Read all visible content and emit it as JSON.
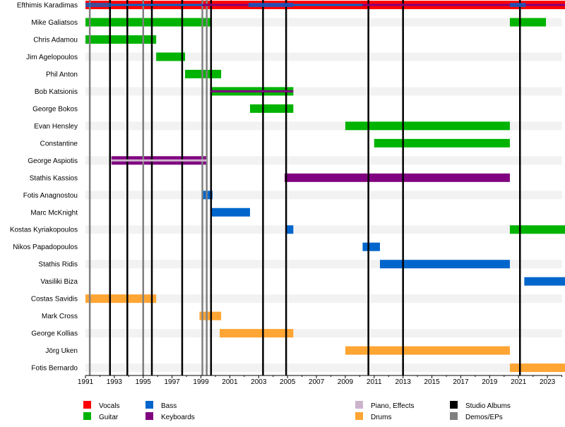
{
  "chart_data": {
    "type": "timeline",
    "xlim": [
      1991,
      2024.3
    ],
    "ticks": [
      1991,
      1993,
      1995,
      1997,
      1999,
      2001,
      2003,
      2005,
      2007,
      2009,
      2011,
      2013,
      2015,
      2017,
      2019,
      2021,
      2023
    ],
    "colors": {
      "Vocals": "#ff0000",
      "Guitar": "#00b300",
      "Bass": "#0066cc",
      "Keyboards": "#800080",
      "Piano, Effects": "#ccb3cc",
      "Drums": "#ffa533",
      "Studio Albums": "#000000",
      "Demos/EPs": "#808080"
    },
    "members": [
      {
        "name": "Efthimis Karadimas",
        "bars": [
          {
            "role": "Vocals",
            "from": 1991,
            "to": 2024.3
          },
          {
            "role": "Bass",
            "from": 1991,
            "to": 1992.8,
            "layer": "inner"
          },
          {
            "role": "Bass",
            "from": 1992.8,
            "to": 1999.1,
            "layer": "thin"
          },
          {
            "role": "Keyboards",
            "from": 1999.1,
            "to": 2024.3,
            "layer": "thin"
          },
          {
            "role": "Bass",
            "from": 2002.3,
            "to": 2005.4,
            "layer": "inner"
          },
          {
            "role": "Bass",
            "from": 2005.4,
            "to": 2010.2,
            "layer": "thin"
          },
          {
            "role": "Bass",
            "from": 2020.4,
            "to": 2021.5,
            "layer": "inner"
          }
        ]
      },
      {
        "name": "Mike Galiatsos",
        "bars": [
          {
            "role": "Guitar",
            "from": 1991,
            "to": 1999.7
          },
          {
            "role": "Guitar",
            "from": 2020.4,
            "to": 2022.9
          }
        ]
      },
      {
        "name": "Chris Adamou",
        "bars": [
          {
            "role": "Guitar",
            "from": 1991,
            "to": 1995.9
          }
        ]
      },
      {
        "name": "Jim Agelopoulos",
        "bars": [
          {
            "role": "Guitar",
            "from": 1995.9,
            "to": 1997.9
          }
        ]
      },
      {
        "name": "Phil Anton",
        "bars": [
          {
            "role": "Guitar",
            "from": 1997.9,
            "to": 2000.4
          }
        ]
      },
      {
        "name": "Bob Katsionis",
        "bars": [
          {
            "role": "Guitar",
            "from": 1999.7,
            "to": 2005.4
          },
          {
            "role": "Keyboards",
            "from": 1999.7,
            "to": 2005.4,
            "layer": "thin"
          }
        ]
      },
      {
        "name": "George Bokos",
        "bars": [
          {
            "role": "Guitar",
            "from": 2002.4,
            "to": 2005.4
          }
        ]
      },
      {
        "name": "Evan Hensley",
        "bars": [
          {
            "role": "Guitar",
            "from": 2009,
            "to": 2020.4
          }
        ]
      },
      {
        "name": "Constantine",
        "bars": [
          {
            "role": "Guitar",
            "from": 2011,
            "to": 2020.4
          }
        ]
      },
      {
        "name": "George Aspiotis",
        "bars": [
          {
            "role": "Keyboards",
            "from": 1992.8,
            "to": 1999.4
          },
          {
            "role": "Piano, Effects",
            "from": 1992.8,
            "to": 1999.4,
            "layer": "thin"
          }
        ]
      },
      {
        "name": "Stathis Kassios",
        "bars": [
          {
            "role": "Keyboards",
            "from": 2004.8,
            "to": 2020.4
          }
        ]
      },
      {
        "name": "Fotis Anagnostou",
        "bars": [
          {
            "role": "Bass",
            "from": 1999.1,
            "to": 1999.8
          }
        ]
      },
      {
        "name": "Marc McKnight",
        "bars": [
          {
            "role": "Bass",
            "from": 1999.7,
            "to": 2002.4
          }
        ]
      },
      {
        "name": "Kostas Kyriakopoulos",
        "bars": [
          {
            "role": "Bass",
            "from": 2004.9,
            "to": 2005.4
          },
          {
            "role": "Guitar",
            "from": 2020.4,
            "to": 2024.3
          }
        ]
      },
      {
        "name": "Nikos Papadopoulos",
        "bars": [
          {
            "role": "Bass",
            "from": 2010.2,
            "to": 2011.4
          }
        ]
      },
      {
        "name": "Stathis Ridis",
        "bars": [
          {
            "role": "Bass",
            "from": 2011.4,
            "to": 2020.4
          }
        ]
      },
      {
        "name": "Vasiliki Biza",
        "bars": [
          {
            "role": "Bass",
            "from": 2021.4,
            "to": 2024.3
          }
        ]
      },
      {
        "name": "Costas Savidis",
        "bars": [
          {
            "role": "Drums",
            "from": 1991,
            "to": 1995.9
          }
        ]
      },
      {
        "name": "Mark Cross",
        "bars": [
          {
            "role": "Drums",
            "from": 1998.9,
            "to": 2000.4
          }
        ]
      },
      {
        "name": "George Kollias",
        "bars": [
          {
            "role": "Drums",
            "from": 2000.3,
            "to": 2005.4
          }
        ]
      },
      {
        "name": "Jörg Uken",
        "bars": [
          {
            "role": "Drums",
            "from": 2009,
            "to": 2020.4
          }
        ]
      },
      {
        "name": "Fotis Bernardo",
        "bars": [
          {
            "role": "Drums",
            "from": 2020.4,
            "to": 2024.3
          }
        ]
      }
    ],
    "studio_albums": [
      1992.7,
      1993.9,
      1995.6,
      1997.7,
      1999.7,
      2003.3,
      2004.9,
      2010.6,
      2013.0,
      2021.1
    ],
    "demos_eps": [
      1991.3,
      1995.0,
      1999.1,
      1999.4
    ],
    "legend": [
      {
        "label": "Vocals",
        "col": 0,
        "row": 0
      },
      {
        "label": "Guitar",
        "col": 0,
        "row": 1
      },
      {
        "label": "Bass",
        "col": 1,
        "row": 0
      },
      {
        "label": "Keyboards",
        "col": 1,
        "row": 1
      },
      {
        "label": "Piano, Effects",
        "col": 2,
        "row": 0
      },
      {
        "label": "Drums",
        "col": 2,
        "row": 1
      },
      {
        "label": "Studio Albums",
        "col": 3,
        "row": 0
      },
      {
        "label": "Demos/EPs",
        "col": 3,
        "row": 1
      }
    ]
  }
}
